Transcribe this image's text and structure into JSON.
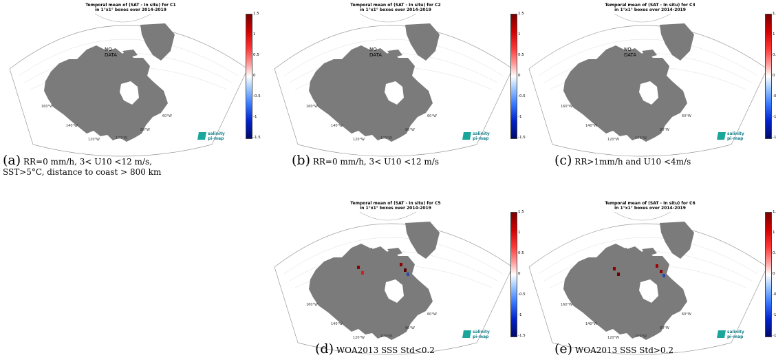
{
  "chart_data": [
    {
      "type": "heatmap",
      "title": "Temporal mean of (SAT - In situ) for C1",
      "subtitle": "in 1°x1° boxes over 2014-2019",
      "colorbar_ticks": [
        "1.5",
        "1",
        "0.5",
        "0",
        "-0.5",
        "-1",
        "-1.5"
      ],
      "colorbar_range": [
        -1.5,
        1.5
      ],
      "annotation": "NO DATA",
      "logo": [
        "salinity",
        "pi-map"
      ]
    },
    {
      "type": "heatmap",
      "title": "Temporal mean of (SAT - In situ) for C2",
      "subtitle": "in 1°x1° boxes over 2014-2019",
      "colorbar_ticks": [
        "1.5",
        "1",
        "0.5",
        "0",
        "-0.5",
        "-1",
        "-1.5"
      ],
      "colorbar_range": [
        -1.5,
        1.5
      ],
      "annotation": "NO DATA",
      "logo": [
        "salinity",
        "pi-map"
      ]
    },
    {
      "type": "heatmap",
      "title": "Temporal mean of (SAT - In situ) for C3",
      "subtitle": "in 1°x1° boxes over 2014-2019",
      "colorbar_ticks": [
        "1.5",
        "1",
        "0.5",
        "0",
        "-0.5",
        "-1",
        "-1.5"
      ],
      "colorbar_range": [
        -1.5,
        1.5
      ],
      "annotation": "NO DATA",
      "logo": [
        "salinity",
        "pi-map"
      ]
    },
    {
      "type": "heatmap",
      "title": "Temporal mean of (SAT - In situ) for C5",
      "subtitle": "in 1°x1° boxes over 2014-2019",
      "colorbar_ticks": [
        "1.5",
        "1",
        "0.5",
        "0",
        "-0.5",
        "-1",
        "-1.5"
      ],
      "colorbar_range": [
        -1.5,
        1.5
      ],
      "annotation": "",
      "logo": [
        "salinity",
        "pi-map"
      ]
    },
    {
      "type": "heatmap",
      "title": "Temporal mean of (SAT - In situ) for C6",
      "subtitle": "in 1°x1° boxes over 2014-2019",
      "colorbar_ticks": [
        "1.5",
        "1",
        "0.5",
        "0",
        "-0.5",
        "-1",
        "-1.5"
      ],
      "colorbar_range": [
        -1.5,
        1.5
      ],
      "annotation": "",
      "logo": [
        "salinity",
        "pi-map"
      ]
    }
  ],
  "longitude_labels": [
    "160°W",
    "140°W",
    "120°W",
    "100°W",
    "80°W",
    "60°W"
  ],
  "captions": [
    {
      "label": "(a)",
      "line1": "RR=0 mm/h, 3< U10 <12 m/s,",
      "line2": "SST>5°C, distance to coast > 800 km"
    },
    {
      "label": "(b)",
      "line1": "RR=0 mm/h, 3< U10 <12 m/s",
      "line2": ""
    },
    {
      "label": "(c)",
      "line1": "RR>1mm/h and U10 <4m/s",
      "line2": ""
    },
    {
      "label": "(d)",
      "line1": "WOA2013 SSS Std<0.2",
      "line2": ""
    },
    {
      "label": "(e)",
      "line1": "WOA2013 SSS Std>0.2",
      "line2": ""
    }
  ]
}
